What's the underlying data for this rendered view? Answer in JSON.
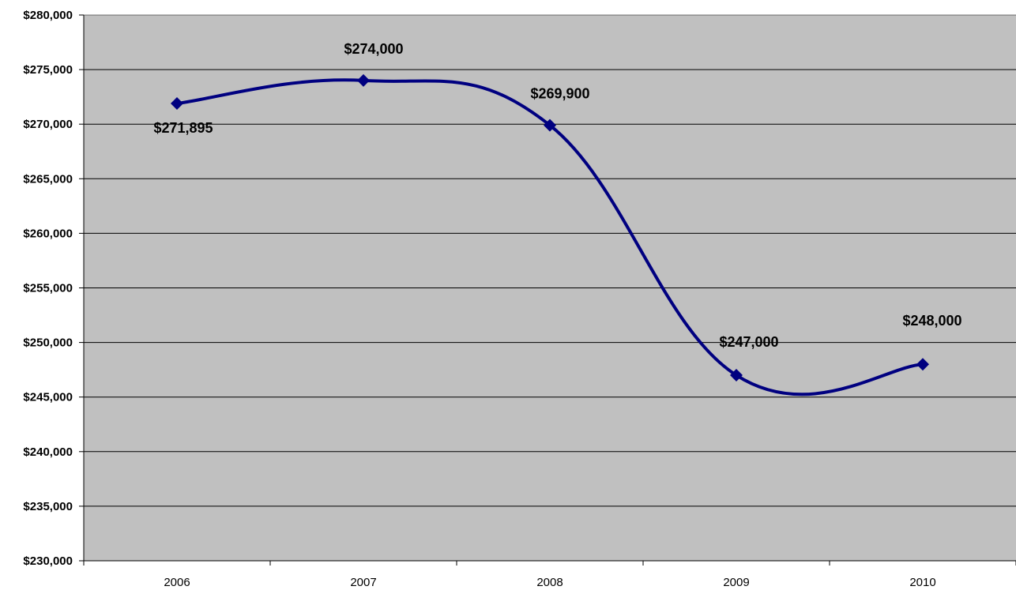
{
  "chart_data": {
    "type": "line",
    "title": "",
    "xlabel": "",
    "ylabel": "",
    "categories": [
      "2006",
      "2007",
      "2008",
      "2009",
      "2010"
    ],
    "series": [
      {
        "values": [
          271895,
          274000,
          269900,
          247000,
          248000
        ],
        "data_labels": [
          "$271,895",
          "$274,000",
          "$269,900",
          "$247,000",
          "$248,000"
        ],
        "color": "#000080",
        "marker": "diamond",
        "smoothed": true
      }
    ],
    "ylim": [
      230000,
      280000
    ],
    "y_step": 5000,
    "y_tick_labels": [
      "$280,000",
      "$275,000",
      "$270,000",
      "$265,000",
      "$260,000",
      "$255,000",
      "$250,000",
      "$245,000",
      "$240,000",
      "$235,000",
      "$230,000"
    ],
    "grid": true,
    "legend": "none",
    "plot_background": "#C0C0C0",
    "gridline_color": "#000000"
  }
}
